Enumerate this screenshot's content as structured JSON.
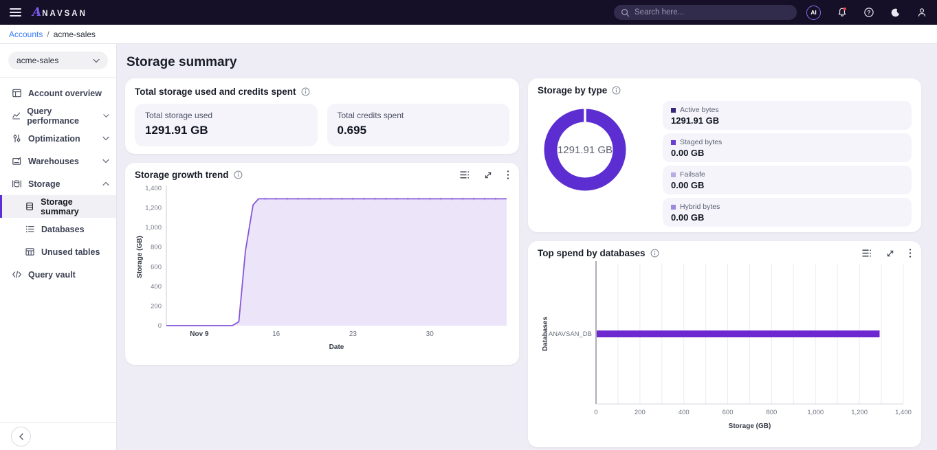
{
  "topbar": {
    "brand": {
      "letter": "A",
      "name": "NAVSAN"
    },
    "search": {
      "placeholder": "Search here..."
    },
    "ai_badge": "AI"
  },
  "breadcrumb": {
    "link": "Accounts",
    "separator": "/",
    "current": "acme-sales"
  },
  "sidebar": {
    "account_selector": {
      "value": "acme-sales"
    },
    "items": [
      {
        "label": "Account overview"
      },
      {
        "label": "Query performance",
        "expandable": true,
        "state": "collapsed"
      },
      {
        "label": "Optimization",
        "expandable": true,
        "state": "collapsed"
      },
      {
        "label": "Warehouses",
        "expandable": true,
        "state": "collapsed"
      },
      {
        "label": "Storage",
        "expandable": true,
        "state": "expanded"
      },
      {
        "label": "Storage summary",
        "child": true,
        "active": true
      },
      {
        "label": "Databases",
        "child": true
      },
      {
        "label": "Unused tables",
        "child": true
      },
      {
        "label": "Query vault"
      }
    ]
  },
  "page": {
    "title": "Storage summary"
  },
  "cards": {
    "totals": {
      "title": "Total storage used and credits spent",
      "stats": [
        {
          "label": "Total storage used",
          "value": "1291.91 GB"
        },
        {
          "label": "Total credits spent",
          "value": "0.695"
        }
      ]
    },
    "growth": {
      "title": "Storage growth trend"
    },
    "by_type": {
      "title": "Storage by type",
      "center_label": "1291.91 GB",
      "legend": [
        {
          "label": "Active bytes",
          "value": "1291.91 GB",
          "color": "#38277f"
        },
        {
          "label": "Staged bytes",
          "value": "0.00 GB",
          "color": "#6b3fd4"
        },
        {
          "label": "Failsafe",
          "value": "0.00 GB",
          "color": "#b9abe8"
        },
        {
          "label": "Hybrid bytes",
          "value": "0.00 GB",
          "color": "#9c89df"
        }
      ]
    },
    "top_spend": {
      "title": "Top spend by databases"
    }
  },
  "colors": {
    "accent": "#5b2ed6",
    "donut": "#5c2ed2",
    "bar": "#6d28cf",
    "line": "#8655d8",
    "area_fill": "#ece5f9",
    "breadcrumb_link": "#3b7cf6",
    "notification_dot": "#e5443c"
  },
  "chart_data": [
    {
      "id": "storage_growth_trend",
      "type": "area",
      "title": "Storage growth trend",
      "xlabel": "Date",
      "ylabel": "Storage (GB)",
      "ylim": [
        0,
        1400
      ],
      "yticks": [
        0,
        200,
        400,
        600,
        800,
        1000,
        1200,
        1400
      ],
      "x_unit": "days offset from Nov 6",
      "x_domain": [
        0,
        31
      ],
      "xticks": [
        {
          "x": 3,
          "label": "Nov 9",
          "bold": true
        },
        {
          "x": 10,
          "label": "16"
        },
        {
          "x": 17,
          "label": "23"
        },
        {
          "x": 24,
          "label": "30"
        }
      ],
      "series": [
        {
          "name": "Storage",
          "points": [
            [
              0,
              0
            ],
            [
              3,
              0
            ],
            [
              6,
              0
            ],
            [
              6.6,
              40
            ],
            [
              7.2,
              760
            ],
            [
              7.9,
              1230
            ],
            [
              8.4,
              1291.91
            ],
            [
              31,
              1291.91
            ]
          ]
        }
      ],
      "flat_value": 1291.91,
      "grid": false,
      "legend": false
    },
    {
      "id": "storage_by_type",
      "type": "pie",
      "title": "Storage by type",
      "center_label": "1291.91 GB",
      "slices": [
        {
          "label": "Active bytes",
          "value": 1291.91
        },
        {
          "label": "Staged bytes",
          "value": 0
        },
        {
          "label": "Failsafe",
          "value": 0
        },
        {
          "label": "Hybrid bytes",
          "value": 0
        }
      ],
      "unit": "GB"
    },
    {
      "id": "top_spend_by_databases",
      "type": "bar",
      "orientation": "horizontal",
      "title": "Top spend by databases",
      "categories": [
        "ANAVSAN_DB"
      ],
      "values": [
        1291.91
      ],
      "xlabel": "Storage (GB)",
      "ylabel": "Databases",
      "xlim": [
        0,
        1400
      ],
      "xticks": [
        0,
        200,
        400,
        600,
        800,
        1000,
        1200,
        1400
      ],
      "minor_grid_step": 100,
      "grid": true,
      "legend": false
    }
  ]
}
